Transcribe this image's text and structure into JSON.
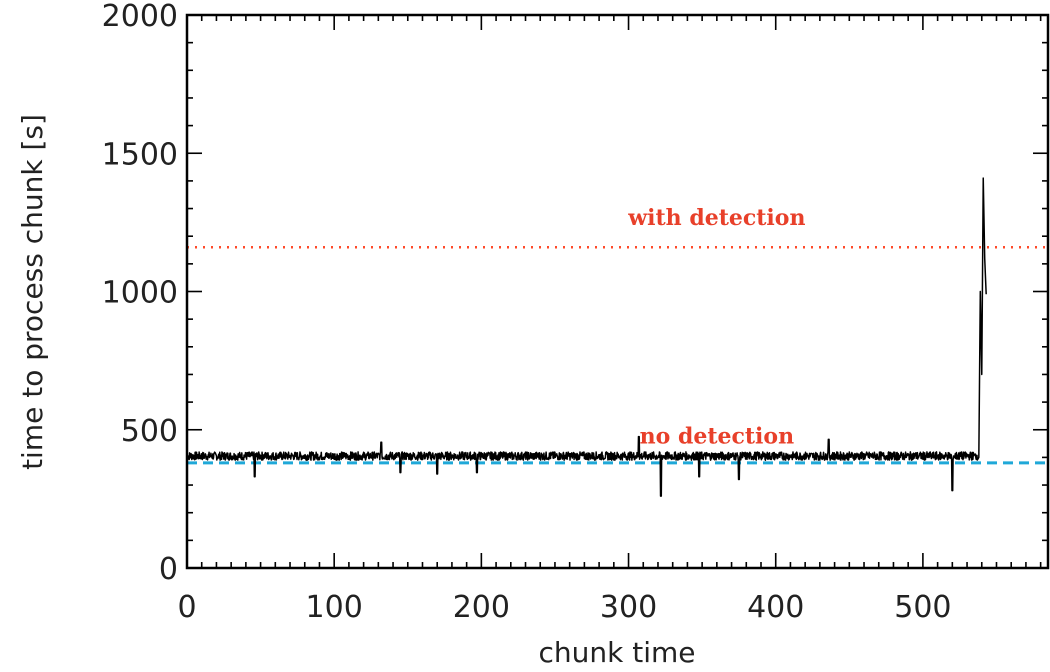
{
  "chart_data": {
    "type": "line",
    "xlabel": "chunk time",
    "ylabel": "time to process chunk [s]",
    "xlim": [
      0,
      585
    ],
    "ylim": [
      0,
      2000
    ],
    "x_ticks": [
      0,
      100,
      200,
      300,
      400,
      500
    ],
    "y_ticks": [
      0,
      500,
      1000,
      1500,
      2000
    ],
    "grid": false,
    "series": [
      {
        "style": "solid",
        "color": "#000000",
        "approximate_baseline": 405,
        "noise_amplitude": 15,
        "dips": [
          [
            46,
            330
          ],
          [
            145,
            345
          ],
          [
            170,
            340
          ],
          [
            197,
            345
          ],
          [
            322,
            260
          ],
          [
            348,
            330
          ],
          [
            375,
            320
          ],
          [
            520,
            280
          ]
        ],
        "spikes": [
          [
            132,
            455
          ],
          [
            307,
            475
          ],
          [
            436,
            465
          ]
        ],
        "x": [
          0,
          537,
          538,
          539,
          540,
          541,
          542,
          543
        ],
        "y": [
          400,
          420,
          400,
          1000,
          700,
          1410,
          1120,
          990
        ]
      }
    ],
    "reference_lines": [
      {
        "y": 1160,
        "style": "dotted",
        "color": "#ff4a2a"
      },
      {
        "y": 380,
        "style": "dashed",
        "color": "#1fa8d8"
      }
    ],
    "annotations": [
      {
        "text": "with detection",
        "x": 360,
        "y": 1240,
        "color": "#e8402a"
      },
      {
        "text": "no detection",
        "x": 360,
        "y": 450,
        "color": "#e8402a"
      }
    ]
  }
}
